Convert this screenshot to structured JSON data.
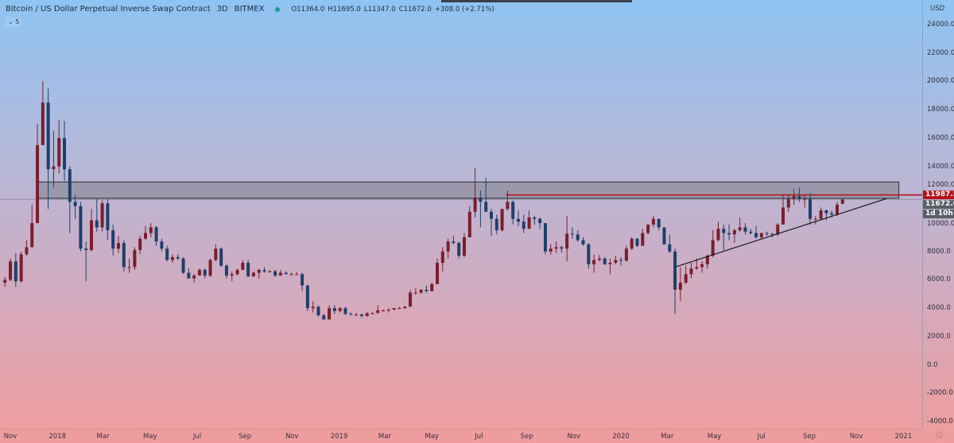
{
  "header": {
    "title": "Bitcoin / US Dollar Perpetual Inverse Swap Contract",
    "interval": "3D",
    "exchange": "BITMEX",
    "status_color": "#1a9e8c",
    "ohlc": {
      "open": "O11364.0",
      "high": "H11695.0",
      "low": "L11347.0",
      "close": "C11672.0",
      "change": "+308.0 (+2.71%)"
    },
    "collapse_label": "⌄ 5"
  },
  "price_axis": {
    "currency": "USD",
    "ticks": [
      "24000.0",
      "22000.0",
      "20000.0",
      "18000.0",
      "16000.0",
      "14000.0",
      "12000.0",
      "10000.0",
      "8000.0",
      "6000.0",
      "4000.0",
      "2000.0",
      "0.0",
      "-2000.0",
      "-4000.0"
    ],
    "tags": {
      "line_price": "11987.5",
      "last_price": "11672.0",
      "countdown": "1d 10h"
    }
  },
  "time_axis": {
    "ticks": [
      {
        "label": "Nov",
        "date": "2017-11-01"
      },
      {
        "label": "2018",
        "date": "2018-01-01"
      },
      {
        "label": "Mar",
        "date": "2018-03-01"
      },
      {
        "label": "May",
        "date": "2018-05-01"
      },
      {
        "label": "Jul",
        "date": "2018-07-01"
      },
      {
        "label": "Sep",
        "date": "2018-09-01"
      },
      {
        "label": "Nov",
        "date": "2018-11-01"
      },
      {
        "label": "2019",
        "date": "2019-01-01"
      },
      {
        "label": "Mar",
        "date": "2019-03-01"
      },
      {
        "label": "May",
        "date": "2019-05-01"
      },
      {
        "label": "Jul",
        "date": "2019-07-01"
      },
      {
        "label": "Sep",
        "date": "2019-09-01"
      },
      {
        "label": "Nov",
        "date": "2019-11-01"
      },
      {
        "label": "2020",
        "date": "2020-01-01"
      },
      {
        "label": "Mar",
        "date": "2020-03-01"
      },
      {
        "label": "May",
        "date": "2020-05-01"
      },
      {
        "label": "Jul",
        "date": "2020-07-01"
      },
      {
        "label": "Sep",
        "date": "2020-09-01"
      },
      {
        "label": "Nov",
        "date": "2020-11-01"
      },
      {
        "label": "2021",
        "date": "2021-01-01"
      }
    ]
  },
  "chart_data": {
    "type": "candlestick",
    "ylim": [
      -4000,
      24000
    ],
    "xlim": [
      "2017-10-19",
      "2021-02-15"
    ],
    "grid": false,
    "colors": {
      "up": "#7a1e2c",
      "down": "#1f3f6b",
      "zone": "#7f7f8c",
      "resistance": "#b3141b",
      "trendline": "#1a1a22"
    },
    "candles_columns": [
      "date",
      "open",
      "high",
      "low",
      "close"
    ],
    "candles": [
      [
        "2017-10-23",
        5800,
        6200,
        5500,
        6000
      ],
      [
        "2017-10-30",
        6000,
        7500,
        5900,
        7300
      ],
      [
        "2017-11-06",
        7300,
        7900,
        5500,
        5900
      ],
      [
        "2017-11-13",
        5900,
        8000,
        5800,
        7800
      ],
      [
        "2017-11-20",
        7800,
        8800,
        7700,
        8300
      ],
      [
        "2017-11-27",
        8300,
        11300,
        8300,
        10000
      ],
      [
        "2017-12-04",
        10000,
        17000,
        10000,
        15500
      ],
      [
        "2017-12-11",
        15500,
        20000,
        15500,
        18500
      ],
      [
        "2017-12-18",
        18500,
        19500,
        11000,
        13800
      ],
      [
        "2017-12-25",
        13800,
        16500,
        12500,
        14000
      ],
      [
        "2018-01-01",
        14000,
        17300,
        13500,
        16000
      ],
      [
        "2018-01-08",
        16000,
        17200,
        13000,
        13800
      ],
      [
        "2018-01-15",
        13800,
        14000,
        9300,
        11500
      ],
      [
        "2018-01-22",
        11500,
        12000,
        10300,
        11200
      ],
      [
        "2018-01-29",
        11200,
        11500,
        8000,
        8200
      ],
      [
        "2018-02-05",
        8200,
        8700,
        5900,
        8100
      ],
      [
        "2018-02-12",
        8100,
        11000,
        8000,
        10200
      ],
      [
        "2018-02-19",
        10200,
        11700,
        9400,
        9700
      ],
      [
        "2018-02-26",
        9700,
        11600,
        9400,
        11400
      ],
      [
        "2018-03-05",
        11400,
        11700,
        8800,
        9500
      ],
      [
        "2018-03-12",
        9500,
        9900,
        7700,
        8200
      ],
      [
        "2018-03-19",
        8200,
        9100,
        7900,
        8600
      ],
      [
        "2018-03-26",
        8600,
        8800,
        6600,
        6900
      ],
      [
        "2018-04-02",
        6900,
        7500,
        6500,
        6900
      ],
      [
        "2018-04-09",
        6900,
        8300,
        6700,
        8100
      ],
      [
        "2018-04-16",
        8100,
        9100,
        7800,
        8900
      ],
      [
        "2018-04-23",
        8900,
        9800,
        8800,
        9300
      ],
      [
        "2018-04-30",
        9300,
        10000,
        9000,
        9700
      ],
      [
        "2018-05-07",
        9700,
        9800,
        8400,
        8700
      ],
      [
        "2018-05-14",
        8700,
        8900,
        8000,
        8200
      ],
      [
        "2018-05-21",
        8200,
        8400,
        7300,
        7400
      ],
      [
        "2018-05-28",
        7400,
        7800,
        7200,
        7600
      ],
      [
        "2018-06-04",
        7600,
        7800,
        7400,
        7500
      ],
      [
        "2018-06-11",
        7500,
        7600,
        6400,
        6500
      ],
      [
        "2018-06-18",
        6500,
        6800,
        6100,
        6100
      ],
      [
        "2018-06-25",
        6100,
        6400,
        5800,
        6300
      ],
      [
        "2018-07-02",
        6300,
        6800,
        6300,
        6700
      ],
      [
        "2018-07-09",
        6700,
        6800,
        6100,
        6300
      ],
      [
        "2018-07-16",
        6300,
        7500,
        6200,
        7400
      ],
      [
        "2018-07-23",
        7400,
        8500,
        7300,
        8200
      ],
      [
        "2018-07-30",
        8200,
        8300,
        6900,
        7000
      ],
      [
        "2018-08-06",
        7000,
        7100,
        6100,
        6300
      ],
      [
        "2018-08-13",
        6300,
        6600,
        5900,
        6400
      ],
      [
        "2018-08-20",
        6400,
        6800,
        6300,
        6700
      ],
      [
        "2018-08-27",
        6700,
        7400,
        6700,
        7200
      ],
      [
        "2018-09-03",
        7200,
        7400,
        6200,
        6250
      ],
      [
        "2018-09-10",
        6250,
        6600,
        6200,
        6500
      ],
      [
        "2018-09-17",
        6500,
        6800,
        6100,
        6700
      ],
      [
        "2018-09-24",
        6700,
        6900,
        6500,
        6600
      ],
      [
        "2018-10-01",
        6600,
        6700,
        6500,
        6600
      ],
      [
        "2018-10-08",
        6600,
        6700,
        6200,
        6300
      ],
      [
        "2018-10-15",
        6300,
        6700,
        6300,
        6500
      ],
      [
        "2018-10-22",
        6500,
        6600,
        6400,
        6400
      ],
      [
        "2018-10-29",
        6400,
        6500,
        6300,
        6400
      ],
      [
        "2018-11-05",
        6400,
        6550,
        6350,
        6400
      ],
      [
        "2018-11-12",
        6400,
        6500,
        5200,
        5600
      ],
      [
        "2018-11-19",
        5600,
        5650,
        3800,
        4000
      ],
      [
        "2018-11-26",
        4000,
        4500,
        3700,
        4100
      ],
      [
        "2018-12-03",
        4100,
        4200,
        3400,
        3500
      ],
      [
        "2018-12-10",
        3500,
        3600,
        3200,
        3200
      ],
      [
        "2018-12-17",
        3200,
        4200,
        3200,
        4000
      ],
      [
        "2018-12-24",
        4000,
        4200,
        3600,
        3800
      ],
      [
        "2018-12-31",
        3800,
        4100,
        3700,
        4000
      ],
      [
        "2019-01-07",
        4000,
        4100,
        3500,
        3600
      ],
      [
        "2019-01-14",
        3600,
        3700,
        3500,
        3550
      ],
      [
        "2019-01-21",
        3550,
        3650,
        3450,
        3550
      ],
      [
        "2019-01-28",
        3550,
        3600,
        3350,
        3450
      ],
      [
        "2019-02-04",
        3450,
        3700,
        3400,
        3650
      ],
      [
        "2019-02-11",
        3650,
        3700,
        3550,
        3650
      ],
      [
        "2019-02-18",
        3650,
        4200,
        3650,
        3850
      ],
      [
        "2019-02-25",
        3850,
        3900,
        3750,
        3850
      ],
      [
        "2019-03-04",
        3850,
        4000,
        3700,
        3900
      ],
      [
        "2019-03-11",
        3900,
        4000,
        3850,
        4000
      ],
      [
        "2019-03-18",
        4000,
        4100,
        3950,
        4000
      ],
      [
        "2019-03-25",
        4000,
        4150,
        3950,
        4100
      ],
      [
        "2019-04-01",
        4100,
        5300,
        4100,
        5100
      ],
      [
        "2019-04-08",
        5100,
        5400,
        4950,
        5100
      ],
      [
        "2019-04-15",
        5100,
        5350,
        5000,
        5300
      ],
      [
        "2019-04-22",
        5300,
        5600,
        5100,
        5200
      ],
      [
        "2019-04-29",
        5200,
        5800,
        5200,
        5700
      ],
      [
        "2019-05-06",
        5700,
        7500,
        5700,
        7200
      ],
      [
        "2019-05-13",
        7200,
        8300,
        6600,
        8000
      ],
      [
        "2019-05-20",
        8000,
        8900,
        7500,
        8700
      ],
      [
        "2019-05-27",
        8700,
        9100,
        8500,
        8600
      ],
      [
        "2019-06-03",
        8600,
        8700,
        7500,
        7700
      ],
      [
        "2019-06-10",
        7700,
        9300,
        7600,
        9000
      ],
      [
        "2019-06-17",
        9000,
        11200,
        9000,
        10800
      ],
      [
        "2019-06-24",
        10800,
        13900,
        10400,
        11800
      ],
      [
        "2019-07-01",
        11800,
        12300,
        9700,
        11500
      ],
      [
        "2019-07-08",
        11500,
        13200,
        10800,
        10800
      ],
      [
        "2019-07-15",
        10800,
        11000,
        9100,
        10300
      ],
      [
        "2019-07-22",
        10300,
        10600,
        9200,
        9500
      ],
      [
        "2019-07-29",
        9500,
        11000,
        9400,
        11000
      ],
      [
        "2019-08-05",
        11000,
        12300,
        10900,
        11500
      ],
      [
        "2019-08-12",
        11500,
        11600,
        9900,
        10300
      ],
      [
        "2019-08-19",
        10300,
        10900,
        9800,
        10100
      ],
      [
        "2019-08-26",
        10100,
        10600,
        9300,
        9600
      ],
      [
        "2019-09-02",
        9600,
        10900,
        9600,
        10400
      ],
      [
        "2019-09-09",
        10400,
        10500,
        9900,
        10300
      ],
      [
        "2019-09-16",
        10300,
        10400,
        9600,
        10000
      ],
      [
        "2019-09-23",
        10000,
        10000,
        7800,
        8000
      ],
      [
        "2019-09-30",
        8000,
        8500,
        7800,
        8200
      ],
      [
        "2019-10-07",
        8200,
        8700,
        7900,
        8300
      ],
      [
        "2019-10-14",
        8300,
        8400,
        7900,
        8200
      ],
      [
        "2019-10-21",
        8200,
        10500,
        7300,
        9250
      ],
      [
        "2019-10-28",
        9250,
        9700,
        8900,
        9200
      ],
      [
        "2019-11-04",
        9200,
        9500,
        8700,
        8800
      ],
      [
        "2019-11-11",
        8800,
        9000,
        8400,
        8500
      ],
      [
        "2019-11-18",
        8500,
        8600,
        6800,
        7100
      ],
      [
        "2019-11-25",
        7100,
        7800,
        6500,
        7400
      ],
      [
        "2019-12-02",
        7400,
        7750,
        7300,
        7500
      ],
      [
        "2019-12-09",
        7500,
        7600,
        7050,
        7100
      ],
      [
        "2019-12-16",
        7100,
        7500,
        6400,
        7200
      ],
      [
        "2019-12-23",
        7200,
        7700,
        7100,
        7400
      ],
      [
        "2019-12-30",
        7400,
        7600,
        7000,
        7350
      ],
      [
        "2020-01-06",
        7350,
        8400,
        7300,
        8200
      ],
      [
        "2020-01-13",
        8200,
        9000,
        8100,
        8900
      ],
      [
        "2020-01-20",
        8900,
        8950,
        8300,
        8400
      ],
      [
        "2020-01-27",
        8400,
        9600,
        8400,
        9300
      ],
      [
        "2020-02-03",
        9300,
        9900,
        9200,
        9900
      ],
      [
        "2020-02-10",
        9900,
        10500,
        9700,
        10300
      ],
      [
        "2020-02-17",
        10300,
        10300,
        9500,
        9700
      ],
      [
        "2020-02-24",
        9700,
        9700,
        8500,
        8500
      ],
      [
        "2020-03-02",
        8500,
        9200,
        7900,
        8000
      ],
      [
        "2020-03-09",
        8000,
        8200,
        3600,
        5300
      ],
      [
        "2020-03-16",
        5300,
        6900,
        4500,
        5800
      ],
      [
        "2020-03-23",
        5800,
        7000,
        5700,
        6400
      ],
      [
        "2020-03-30",
        6400,
        7200,
        6100,
        6800
      ],
      [
        "2020-04-06",
        6800,
        7500,
        6700,
        6900
      ],
      [
        "2020-04-13",
        6900,
        7300,
        6500,
        7100
      ],
      [
        "2020-04-20",
        7100,
        7800,
        6800,
        7700
      ],
      [
        "2020-04-27",
        7700,
        9500,
        7600,
        8800
      ],
      [
        "2020-05-04",
        8800,
        10100,
        8700,
        9600
      ],
      [
        "2020-05-11",
        9600,
        9900,
        8100,
        9300
      ],
      [
        "2020-05-18",
        9300,
        9900,
        8800,
        9200
      ],
      [
        "2020-05-25",
        9200,
        9600,
        8600,
        9500
      ],
      [
        "2020-06-01",
        9500,
        10400,
        9400,
        9700
      ],
      [
        "2020-06-08",
        9700,
        10000,
        9200,
        9400
      ],
      [
        "2020-06-15",
        9400,
        9600,
        9200,
        9300
      ],
      [
        "2020-06-22",
        9300,
        9800,
        8900,
        9000
      ],
      [
        "2020-06-29",
        9000,
        9300,
        8900,
        9300
      ],
      [
        "2020-07-06",
        9300,
        9400,
        9100,
        9250
      ],
      [
        "2020-07-13",
        9250,
        9300,
        9000,
        9200
      ],
      [
        "2020-07-20",
        9200,
        10000,
        9100,
        9900
      ],
      [
        "2020-07-27",
        9900,
        12000,
        9900,
        11100
      ],
      [
        "2020-08-03",
        11100,
        12000,
        10800,
        11700
      ],
      [
        "2020-08-10",
        11700,
        12400,
        11300,
        11900
      ],
      [
        "2020-08-17",
        11900,
        12500,
        11500,
        11700
      ],
      [
        "2020-08-24",
        11700,
        12000,
        11100,
        11700
      ],
      [
        "2020-08-31",
        11700,
        12100,
        9900,
        10300
      ],
      [
        "2020-09-07",
        10300,
        10500,
        9900,
        10300
      ],
      [
        "2020-09-14",
        10300,
        11100,
        10200,
        10900
      ],
      [
        "2020-09-21",
        10900,
        10950,
        10200,
        10700
      ],
      [
        "2020-09-28",
        10700,
        10900,
        10400,
        10600
      ],
      [
        "2020-10-05",
        10600,
        11500,
        10500,
        11300
      ],
      [
        "2020-10-12",
        11364,
        11695,
        11347,
        11672
      ]
    ],
    "drawings": {
      "zone": {
        "from": "2017-12-05",
        "to": "2020-12-26",
        "low": 11750,
        "high": 12900
      },
      "resistance_line": {
        "from": "2019-08-05",
        "price": 11987.5
      },
      "trendline": {
        "from": [
          "2020-03-12",
          6920
        ],
        "to": [
          "2020-12-10",
          11730
        ]
      },
      "last_price_line": 11672.0
    }
  }
}
